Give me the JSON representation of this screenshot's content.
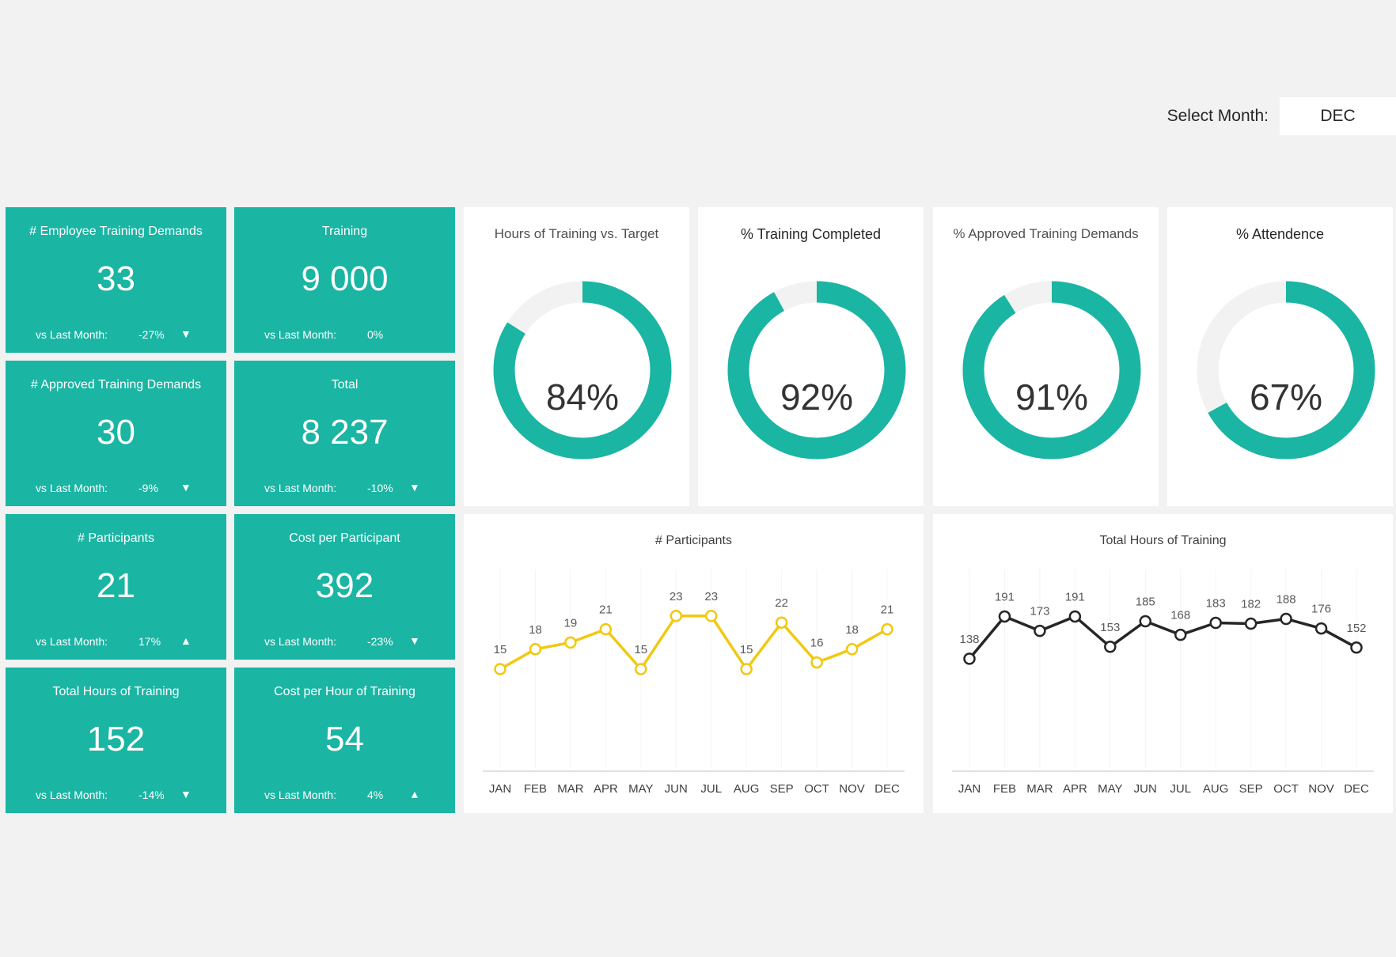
{
  "header": {
    "select_label": "Select Month:",
    "selected_month": "DEC"
  },
  "colors": {
    "teal": "#1ab5a3",
    "yellow": "#f2c811",
    "dark": "#262626",
    "track": "#f2f2f2"
  },
  "kpis": [
    {
      "title": "# Employee Training Demands",
      "value": "33",
      "vs_label": "vs Last Month:",
      "delta": "-27%",
      "arrow": "▼"
    },
    {
      "title": "Training",
      "value": "9 000",
      "vs_label": "vs Last Month:",
      "delta": "0%",
      "arrow": ""
    },
    {
      "title": "# Approved Training Demands",
      "value": "30",
      "vs_label": "vs Last Month:",
      "delta": "-9%",
      "arrow": "▼"
    },
    {
      "title": "Total",
      "value": "8 237",
      "vs_label": "vs Last Month:",
      "delta": "-10%",
      "arrow": "▼"
    },
    {
      "title": "# Participants",
      "value": "21",
      "vs_label": "vs Last Month:",
      "delta": "17%",
      "arrow": "▲"
    },
    {
      "title": "Cost per Participant",
      "value": "392",
      "vs_label": "vs Last Month:",
      "delta": "-23%",
      "arrow": "▼"
    },
    {
      "title": "Total Hours of Training",
      "value": "152",
      "vs_label": "vs Last Month:",
      "delta": "-14%",
      "arrow": "▼"
    },
    {
      "title": "Cost per Hour of Training",
      "value": "54",
      "vs_label": "vs Last Month:",
      "delta": "4%",
      "arrow": "▲"
    }
  ],
  "donuts": [
    {
      "title": "Hours of Training vs. Target",
      "value": 84,
      "label": "84%"
    },
    {
      "title": "% Training Completed",
      "value": 92,
      "label": "92%"
    },
    {
      "title": "% Approved Training Demands",
      "value": 91,
      "label": "91%"
    },
    {
      "title": "%  Attendence",
      "value": 67,
      "label": "67%"
    }
  ],
  "chart_data": [
    {
      "type": "line",
      "title": "# Participants",
      "categories": [
        "JAN",
        "FEB",
        "MAR",
        "APR",
        "MAY",
        "JUN",
        "JUL",
        "AUG",
        "SEP",
        "OCT",
        "NOV",
        "DEC"
      ],
      "values": [
        15,
        18,
        19,
        21,
        15,
        23,
        23,
        15,
        22,
        16,
        18,
        21
      ],
      "labels": [
        "15",
        "18",
        "19",
        "21",
        "15",
        "23",
        "23",
        "15",
        "22",
        "16",
        "18",
        "21"
      ],
      "ylim": [
        0,
        30
      ],
      "color": "#f2c811",
      "xlabel": "",
      "ylabel": ""
    },
    {
      "type": "line",
      "title": "Total Hours of Training",
      "categories": [
        "JAN",
        "FEB",
        "MAR",
        "APR",
        "MAY",
        "JUN",
        "JUL",
        "AUG",
        "SEP",
        "OCT",
        "NOV",
        "DEC"
      ],
      "values": [
        138,
        191,
        173,
        191,
        153,
        185,
        168,
        183,
        182,
        188,
        176,
        152
      ],
      "labels": [
        "138",
        "191",
        "173",
        "191",
        "153",
        "185",
        "168",
        "183",
        "182",
        "188",
        "176",
        "152"
      ],
      "ylim": [
        0,
        250
      ],
      "color": "#262626",
      "xlabel": "",
      "ylabel": ""
    }
  ]
}
